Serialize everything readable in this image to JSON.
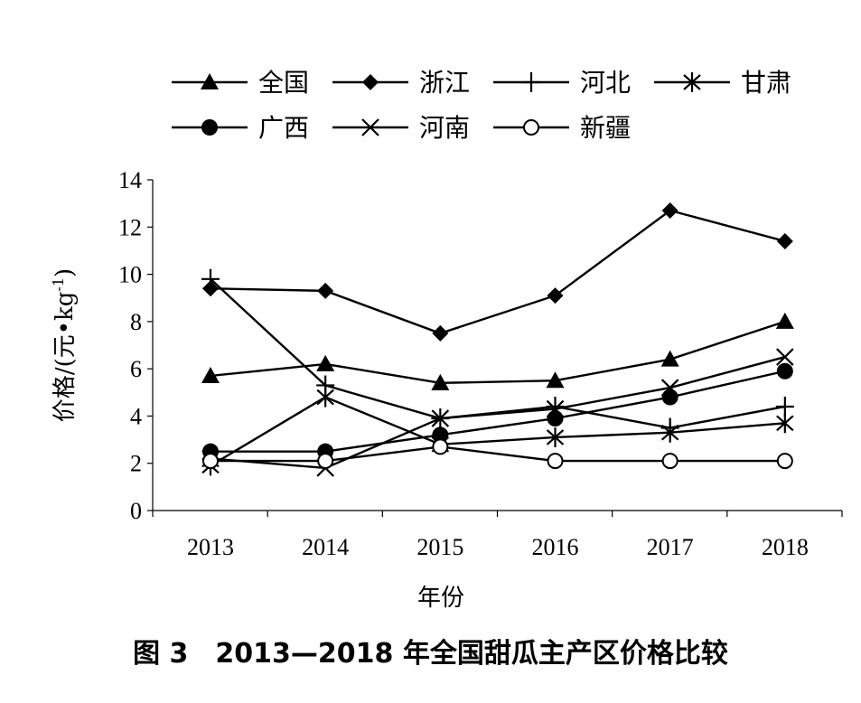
{
  "caption": "图 3　2013—2018 年全国甜瓜主产区价格比较",
  "chart_data": {
    "type": "line",
    "title": "",
    "xlabel": "年份",
    "ylabel": "价格/(元•kg",
    "ylabel_sup": "-1",
    "ylabel_close": ")",
    "categories": [
      "2013",
      "2014",
      "2015",
      "2016",
      "2017",
      "2018"
    ],
    "ylim": [
      0,
      14
    ],
    "yticks": [
      "0",
      "2",
      "4",
      "6",
      "8",
      "10",
      "12",
      "14"
    ],
    "grid": false,
    "legend_position": "top",
    "series": [
      {
        "name": "全国",
        "marker": "triangle",
        "values": [
          5.7,
          6.2,
          5.4,
          5.5,
          6.4,
          8.0
        ]
      },
      {
        "name": "浙江",
        "marker": "diamond",
        "values": [
          9.4,
          9.3,
          7.5,
          9.1,
          12.7,
          11.4
        ]
      },
      {
        "name": "河北",
        "marker": "plus",
        "values": [
          9.8,
          5.3,
          3.9,
          4.4,
          3.5,
          4.4
        ]
      },
      {
        "name": "甘肃",
        "marker": "asterisk",
        "values": [
          1.9,
          4.8,
          2.8,
          3.1,
          3.3,
          3.7
        ]
      },
      {
        "name": "广西",
        "marker": "circle-filled",
        "values": [
          2.5,
          2.5,
          3.2,
          3.9,
          4.8,
          5.9
        ]
      },
      {
        "name": "河南",
        "marker": "x",
        "values": [
          2.2,
          1.8,
          3.9,
          4.3,
          5.2,
          6.5
        ]
      },
      {
        "name": "新疆",
        "marker": "circle-open",
        "values": [
          2.1,
          2.1,
          2.7,
          2.1,
          2.1,
          2.1
        ]
      }
    ]
  }
}
